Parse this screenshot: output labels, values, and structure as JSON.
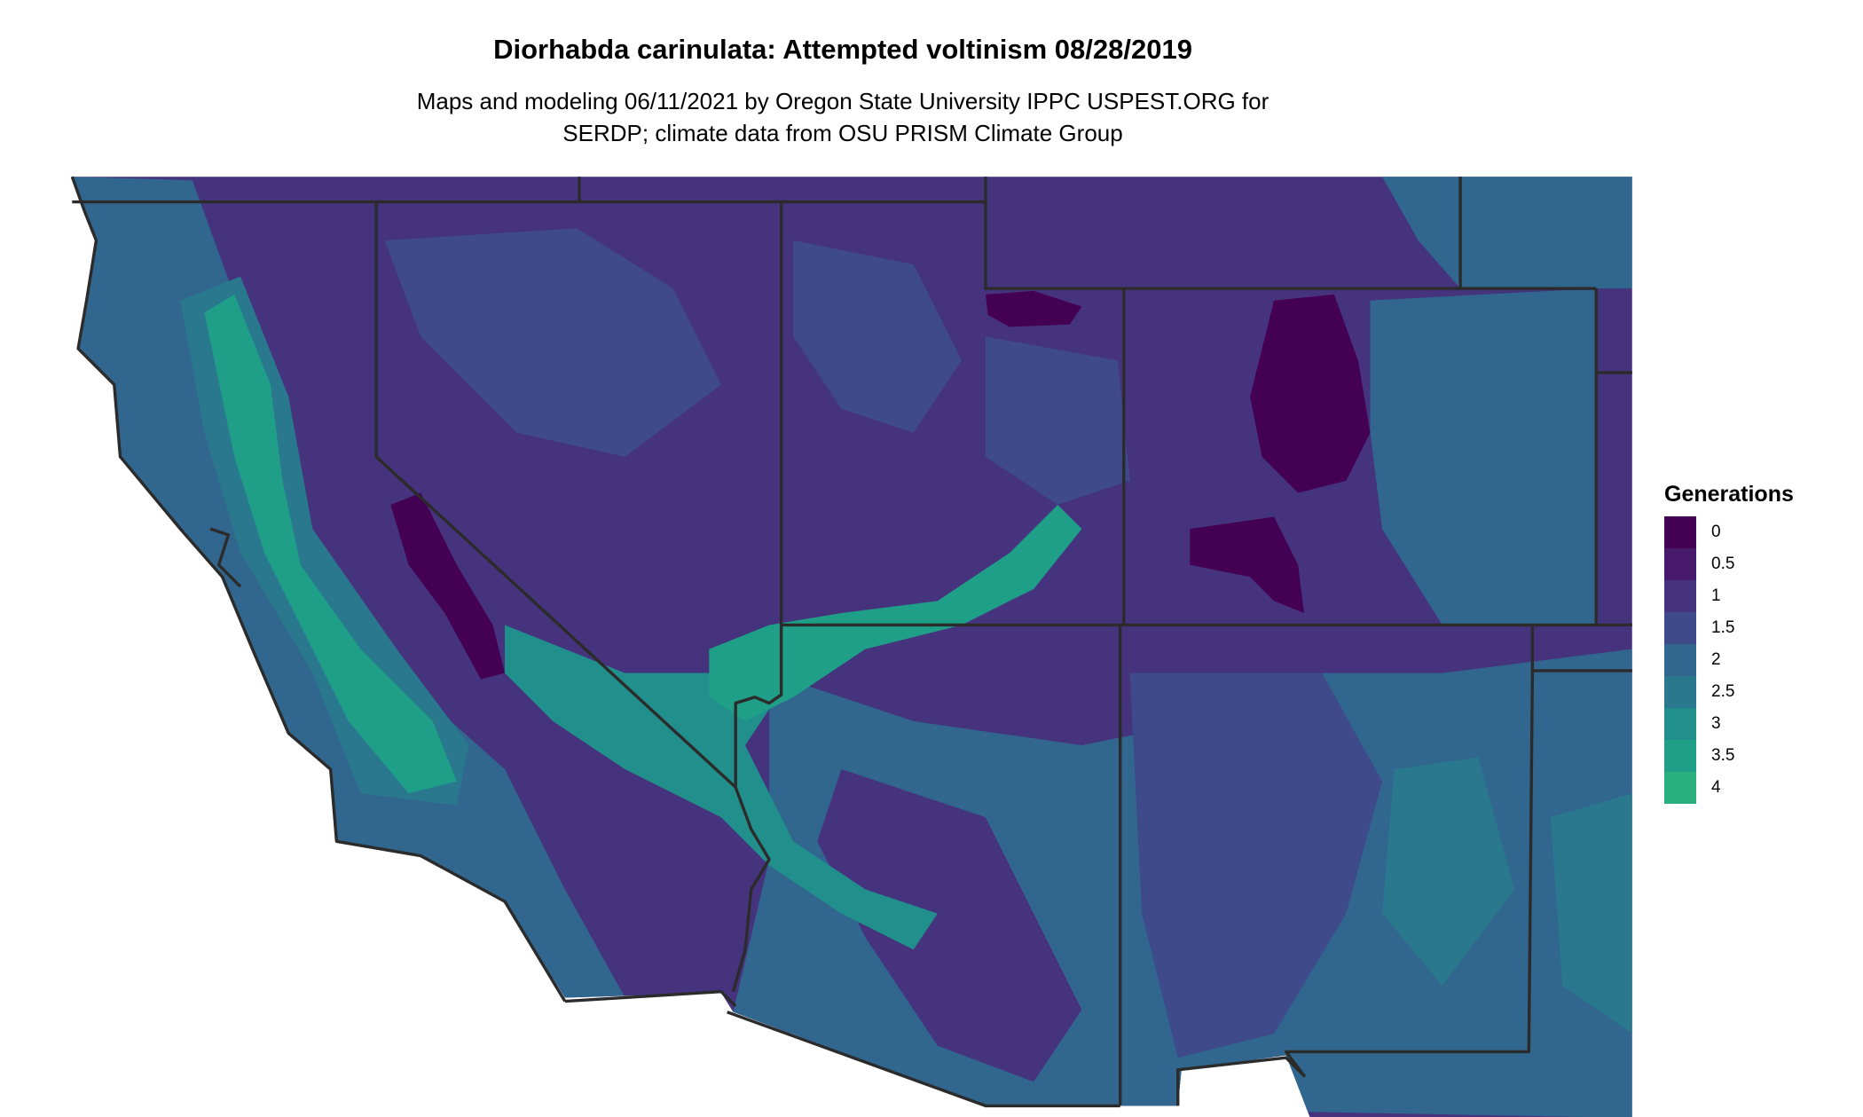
{
  "title": "Diorhabda carinulata: Attempted voltinism 08/28/2019",
  "subtitle_lines": [
    "Maps and modeling 06/11/2021 by Oregon State University IPPC USPEST.ORG for",
    "SERDP; climate data from OSU PRISM Climate Group"
  ],
  "legend": {
    "title": "Generations",
    "items": [
      {
        "label": "0",
        "color": "#440154"
      },
      {
        "label": "0.5",
        "color": "#481a6c"
      },
      {
        "label": "1",
        "color": "#46337e"
      },
      {
        "label": "1.5",
        "color": "#3e4a89"
      },
      {
        "label": "2",
        "color": "#31678e"
      },
      {
        "label": "2.5",
        "color": "#29788e"
      },
      {
        "label": "3",
        "color": "#21908d"
      },
      {
        "label": "3.5",
        "color": "#1f9f88"
      },
      {
        "label": "4",
        "color": "#2ab07f"
      }
    ]
  },
  "border_color": "#2b2b2b"
}
